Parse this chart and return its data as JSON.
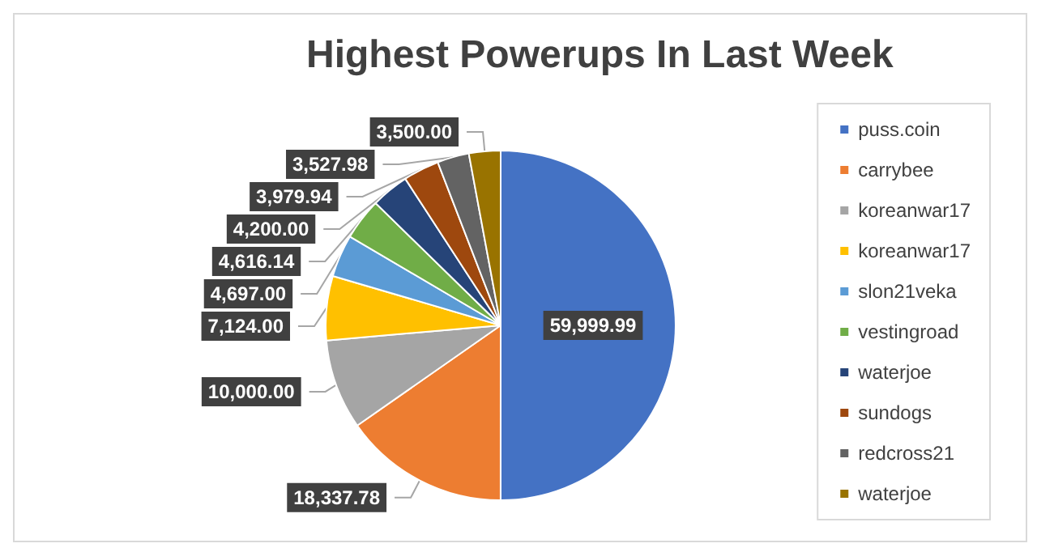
{
  "chart_data": {
    "type": "pie",
    "title": "Highest Powerups In Last Week",
    "categories": [
      "puss.coin",
      "carrybee",
      "koreanwar17",
      "koreanwar17",
      "slon21veka",
      "vestingroad",
      "waterjoe",
      "sundogs",
      "redcross21",
      "waterjoe"
    ],
    "values": [
      59999.99,
      18337.78,
      10000.0,
      7124.0,
      4697.0,
      4616.14,
      4200.0,
      3979.94,
      3527.98,
      3500.0
    ],
    "colors": [
      "#4472c4",
      "#ed7d31",
      "#a5a5a5",
      "#ffc000",
      "#5b9bd5",
      "#70ad47",
      "#264478",
      "#9e480e",
      "#636363",
      "#997300"
    ],
    "value_labels": [
      "59,999.99",
      "18,337.78",
      "10,000.00",
      "7,124.00",
      "4,697.00",
      "4,616.14",
      "4,200.00",
      "3,979.94",
      "3,527.98",
      "3,500.00"
    ],
    "legend": "right"
  }
}
